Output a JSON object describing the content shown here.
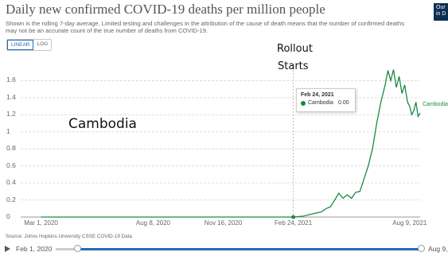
{
  "header": {
    "title": "Daily new confirmed COVID-19 deaths per million people",
    "subtitle": "Shown is the rolling 7-day average. Limited testing and challenges in the attribution of the cause of death means that the number of confirmed deaths may not be an accurate count of the true number of deaths from COVID-19.",
    "logo_lines": [
      "Our",
      "in D"
    ]
  },
  "toggle": {
    "linear": "LINEAR",
    "log": "LOG",
    "active": "LINEAR"
  },
  "annotations": {
    "rollout_line1": "Rollout",
    "rollout_line2": "Starts",
    "country_big": "Cambodia"
  },
  "tooltip": {
    "date": "Feb 24, 2021",
    "name": "Cambodia",
    "value": "0.00"
  },
  "series_label": "Cambodia",
  "source": "Source: Johns Hopkins University CSSE COVID-19 Data",
  "timeline": {
    "start": "Feb 1, 2020",
    "end": "Aug 9,"
  },
  "colors": {
    "series": "#1c8a3e",
    "accent": "#1f6bb5",
    "grid": "#dddddd"
  },
  "chart_data": {
    "type": "line",
    "title": "Daily new confirmed COVID-19 deaths per million people",
    "ylim": [
      0,
      1.8
    ],
    "yticks": [
      "0",
      "0.2",
      "0.4",
      "0.6",
      "0.8",
      "1",
      "1.2",
      "1.4",
      "1.6"
    ],
    "xticks": [
      "Mar 1, 2020",
      "Aug 8, 2020",
      "Nov 16, 2020",
      "Feb 24, 2021",
      "Aug 9, 2021"
    ],
    "grid": true,
    "series": [
      {
        "name": "Cambodia",
        "x": [
          "2020-03-01",
          "2021-02-24",
          "2021-03-10",
          "2021-03-20",
          "2021-03-30",
          "2021-04-05",
          "2021-04-12",
          "2021-04-18",
          "2021-04-24",
          "2021-04-30",
          "2021-05-06",
          "2021-05-12",
          "2021-05-18",
          "2021-05-24",
          "2021-05-30",
          "2021-06-05",
          "2021-06-11",
          "2021-06-17",
          "2021-06-23",
          "2021-06-29",
          "2021-07-05",
          "2021-07-09",
          "2021-07-13",
          "2021-07-17",
          "2021-07-21",
          "2021-07-25",
          "2021-07-29",
          "2021-08-02",
          "2021-08-06",
          "2021-08-09",
          "2021-08-12",
          "2021-08-15",
          "2021-08-18",
          "2021-08-21",
          "2021-08-24"
        ],
        "y": [
          0,
          0,
          0.01,
          0.03,
          0.05,
          0.06,
          0.1,
          0.12,
          0.2,
          0.28,
          0.22,
          0.26,
          0.22,
          0.29,
          0.3,
          0.45,
          0.6,
          0.8,
          1.1,
          1.35,
          1.55,
          1.72,
          1.6,
          1.73,
          1.52,
          1.65,
          1.45,
          1.55,
          1.35,
          1.3,
          1.2,
          1.25,
          1.35,
          1.18,
          1.22
        ]
      }
    ]
  }
}
